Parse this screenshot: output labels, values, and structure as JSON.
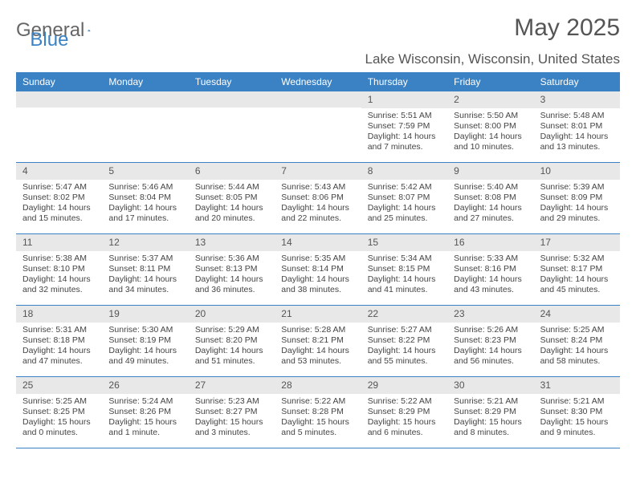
{
  "brand": {
    "part1": "General",
    "part2": "Blue"
  },
  "title": "May 2025",
  "location": "Lake Wisconsin, Wisconsin, United States",
  "colors": {
    "header_bg": "#3b82c4",
    "header_text": "#ffffff",
    "num_bg": "#e8e8e8",
    "text": "#444444",
    "subtle": "#555555",
    "row_border": "#3b82c4"
  },
  "day_labels": [
    "Sunday",
    "Monday",
    "Tuesday",
    "Wednesday",
    "Thursday",
    "Friday",
    "Saturday"
  ],
  "weeks": [
    [
      {
        "num": "",
        "lines": []
      },
      {
        "num": "",
        "lines": []
      },
      {
        "num": "",
        "lines": []
      },
      {
        "num": "",
        "lines": []
      },
      {
        "num": "1",
        "lines": [
          "Sunrise: 5:51 AM",
          "Sunset: 7:59 PM",
          "Daylight: 14 hours and 7 minutes."
        ]
      },
      {
        "num": "2",
        "lines": [
          "Sunrise: 5:50 AM",
          "Sunset: 8:00 PM",
          "Daylight: 14 hours and 10 minutes."
        ]
      },
      {
        "num": "3",
        "lines": [
          "Sunrise: 5:48 AM",
          "Sunset: 8:01 PM",
          "Daylight: 14 hours and 13 minutes."
        ]
      }
    ],
    [
      {
        "num": "4",
        "lines": [
          "Sunrise: 5:47 AM",
          "Sunset: 8:02 PM",
          "Daylight: 14 hours and 15 minutes."
        ]
      },
      {
        "num": "5",
        "lines": [
          "Sunrise: 5:46 AM",
          "Sunset: 8:04 PM",
          "Daylight: 14 hours and 17 minutes."
        ]
      },
      {
        "num": "6",
        "lines": [
          "Sunrise: 5:44 AM",
          "Sunset: 8:05 PM",
          "Daylight: 14 hours and 20 minutes."
        ]
      },
      {
        "num": "7",
        "lines": [
          "Sunrise: 5:43 AM",
          "Sunset: 8:06 PM",
          "Daylight: 14 hours and 22 minutes."
        ]
      },
      {
        "num": "8",
        "lines": [
          "Sunrise: 5:42 AM",
          "Sunset: 8:07 PM",
          "Daylight: 14 hours and 25 minutes."
        ]
      },
      {
        "num": "9",
        "lines": [
          "Sunrise: 5:40 AM",
          "Sunset: 8:08 PM",
          "Daylight: 14 hours and 27 minutes."
        ]
      },
      {
        "num": "10",
        "lines": [
          "Sunrise: 5:39 AM",
          "Sunset: 8:09 PM",
          "Daylight: 14 hours and 29 minutes."
        ]
      }
    ],
    [
      {
        "num": "11",
        "lines": [
          "Sunrise: 5:38 AM",
          "Sunset: 8:10 PM",
          "Daylight: 14 hours and 32 minutes."
        ]
      },
      {
        "num": "12",
        "lines": [
          "Sunrise: 5:37 AM",
          "Sunset: 8:11 PM",
          "Daylight: 14 hours and 34 minutes."
        ]
      },
      {
        "num": "13",
        "lines": [
          "Sunrise: 5:36 AM",
          "Sunset: 8:13 PM",
          "Daylight: 14 hours and 36 minutes."
        ]
      },
      {
        "num": "14",
        "lines": [
          "Sunrise: 5:35 AM",
          "Sunset: 8:14 PM",
          "Daylight: 14 hours and 38 minutes."
        ]
      },
      {
        "num": "15",
        "lines": [
          "Sunrise: 5:34 AM",
          "Sunset: 8:15 PM",
          "Daylight: 14 hours and 41 minutes."
        ]
      },
      {
        "num": "16",
        "lines": [
          "Sunrise: 5:33 AM",
          "Sunset: 8:16 PM",
          "Daylight: 14 hours and 43 minutes."
        ]
      },
      {
        "num": "17",
        "lines": [
          "Sunrise: 5:32 AM",
          "Sunset: 8:17 PM",
          "Daylight: 14 hours and 45 minutes."
        ]
      }
    ],
    [
      {
        "num": "18",
        "lines": [
          "Sunrise: 5:31 AM",
          "Sunset: 8:18 PM",
          "Daylight: 14 hours and 47 minutes."
        ]
      },
      {
        "num": "19",
        "lines": [
          "Sunrise: 5:30 AM",
          "Sunset: 8:19 PM",
          "Daylight: 14 hours and 49 minutes."
        ]
      },
      {
        "num": "20",
        "lines": [
          "Sunrise: 5:29 AM",
          "Sunset: 8:20 PM",
          "Daylight: 14 hours and 51 minutes."
        ]
      },
      {
        "num": "21",
        "lines": [
          "Sunrise: 5:28 AM",
          "Sunset: 8:21 PM",
          "Daylight: 14 hours and 53 minutes."
        ]
      },
      {
        "num": "22",
        "lines": [
          "Sunrise: 5:27 AM",
          "Sunset: 8:22 PM",
          "Daylight: 14 hours and 55 minutes."
        ]
      },
      {
        "num": "23",
        "lines": [
          "Sunrise: 5:26 AM",
          "Sunset: 8:23 PM",
          "Daylight: 14 hours and 56 minutes."
        ]
      },
      {
        "num": "24",
        "lines": [
          "Sunrise: 5:25 AM",
          "Sunset: 8:24 PM",
          "Daylight: 14 hours and 58 minutes."
        ]
      }
    ],
    [
      {
        "num": "25",
        "lines": [
          "Sunrise: 5:25 AM",
          "Sunset: 8:25 PM",
          "Daylight: 15 hours and 0 minutes."
        ]
      },
      {
        "num": "26",
        "lines": [
          "Sunrise: 5:24 AM",
          "Sunset: 8:26 PM",
          "Daylight: 15 hours and 1 minute."
        ]
      },
      {
        "num": "27",
        "lines": [
          "Sunrise: 5:23 AM",
          "Sunset: 8:27 PM",
          "Daylight: 15 hours and 3 minutes."
        ]
      },
      {
        "num": "28",
        "lines": [
          "Sunrise: 5:22 AM",
          "Sunset: 8:28 PM",
          "Daylight: 15 hours and 5 minutes."
        ]
      },
      {
        "num": "29",
        "lines": [
          "Sunrise: 5:22 AM",
          "Sunset: 8:29 PM",
          "Daylight: 15 hours and 6 minutes."
        ]
      },
      {
        "num": "30",
        "lines": [
          "Sunrise: 5:21 AM",
          "Sunset: 8:29 PM",
          "Daylight: 15 hours and 8 minutes."
        ]
      },
      {
        "num": "31",
        "lines": [
          "Sunrise: 5:21 AM",
          "Sunset: 8:30 PM",
          "Daylight: 15 hours and 9 minutes."
        ]
      }
    ]
  ]
}
